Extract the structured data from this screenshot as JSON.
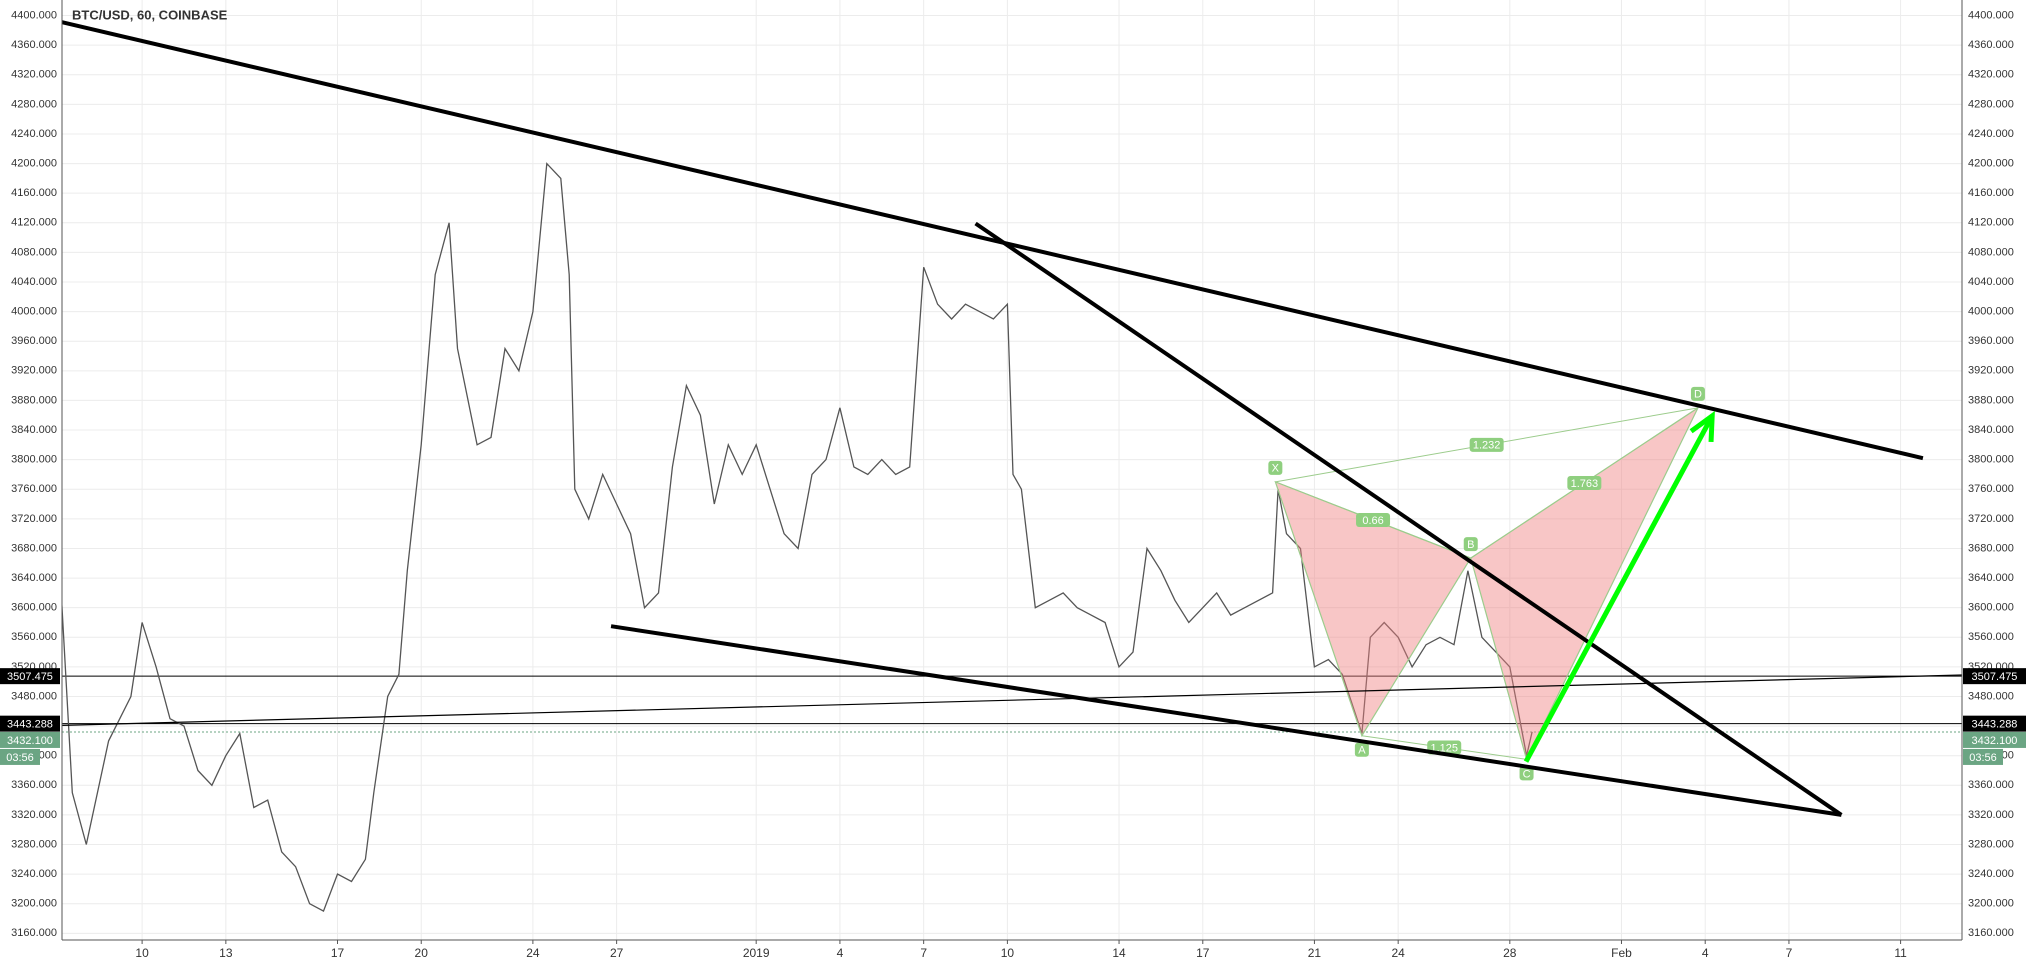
{
  "chart_data": {
    "type": "line",
    "title": "BTC/USD, 60, COINBASE",
    "color": "#555555",
    "x": [
      7.1,
      7.5,
      8,
      8.8,
      9.6,
      10,
      10.5,
      11,
      11.5,
      12,
      12.5,
      13,
      13.5,
      14,
      14.5,
      15,
      15.5,
      16,
      16.5,
      17,
      17.5,
      18,
      18.3,
      18.8,
      19.2,
      19.5,
      20,
      20.5,
      21,
      21.3,
      22,
      22.5,
      23,
      23.5,
      24,
      24.5,
      25,
      25.3,
      25.5,
      26,
      26.5,
      27,
      27.5,
      28,
      28.5,
      29,
      29.5,
      30,
      30.5,
      31,
      31.5,
      32,
      32.5,
      33,
      33.5,
      34,
      34.5,
      35,
      35.5,
      36,
      36.5,
      37,
      37.5,
      38,
      38.5,
      39,
      39.5,
      40,
      40.5,
      41,
      41.2,
      41.5,
      42,
      42.5,
      43,
      43.5,
      44,
      44.5,
      45,
      45.5,
      46,
      46.5,
      47,
      47.5,
      48,
      48.5,
      49,
      49.5,
      50.5,
      50.7,
      51,
      51.5,
      52,
      52.5,
      53,
      53.7,
      54,
      54.5,
      55,
      55.5,
      56,
      56.5,
      57,
      57.5,
      58,
      58.5,
      59,
      59.6,
      59.8
    ],
    "values": [
      3620,
      3350,
      3280,
      3420,
      3480,
      3580,
      3520,
      3450,
      3440,
      3380,
      3360,
      3400,
      3430,
      3330,
      3340,
      3270,
      3250,
      3200,
      3190,
      3240,
      3230,
      3260,
      3350,
      3480,
      3510,
      3650,
      3820,
      4050,
      4120,
      3950,
      3820,
      3830,
      3950,
      3920,
      4000,
      4200,
      4180,
      4050,
      3760,
      3720,
      3780,
      3740,
      3700,
      3600,
      3620,
      3790,
      3900,
      3860,
      3740,
      3820,
      3780,
      3820,
      3760,
      3700,
      3680,
      3780,
      3800,
      3870,
      3790,
      3780,
      3800,
      3780,
      3790,
      4060,
      4010,
      3990,
      4010,
      4000,
      3990,
      4010,
      3780,
      3760,
      3600,
      3610,
      3620,
      3600,
      3590,
      3580,
      3520,
      3540,
      3680,
      3650,
      3610,
      3580,
      3600,
      3620,
      3590,
      3600,
      3620,
      3760,
      3700,
      3680,
      3520,
      3530,
      3510,
      3430,
      3560,
      3580,
      3560,
      3520,
      3550,
      3560,
      3550,
      3650,
      3560,
      3540,
      3520,
      3400,
      3432.1
    ],
    "xlim": [
      7.13,
      75.2
    ],
    "xticks": [
      {
        "value": 10,
        "label": "10"
      },
      {
        "value": 13,
        "label": "13"
      },
      {
        "value": 17,
        "label": "17"
      },
      {
        "value": 20,
        "label": "20"
      },
      {
        "value": 24,
        "label": "24"
      },
      {
        "value": 27,
        "label": "27"
      },
      {
        "value": 32,
        "label": "2019"
      },
      {
        "value": 35,
        "label": "4"
      },
      {
        "value": 38,
        "label": "7"
      },
      {
        "value": 41,
        "label": "10"
      },
      {
        "value": 45,
        "label": "14"
      },
      {
        "value": 48,
        "label": "17"
      },
      {
        "value": 52,
        "label": "21"
      },
      {
        "value": 55,
        "label": "24"
      },
      {
        "value": 59,
        "label": "28"
      },
      {
        "value": 63,
        "label": "Feb"
      },
      {
        "value": 66,
        "label": "4"
      },
      {
        "value": 69,
        "label": "7"
      },
      {
        "value": 73,
        "label": "11"
      }
    ],
    "ylim": [
      3151,
      4421
    ],
    "yticks": [
      {
        "value": 3160,
        "label": "3160.000"
      },
      {
        "value": 3200,
        "label": "3200.000"
      },
      {
        "value": 3240,
        "label": "3240.000"
      },
      {
        "value": 3280,
        "label": "3280.000"
      },
      {
        "value": 3320,
        "label": "3320.000"
      },
      {
        "value": 3360,
        "label": "3360.000"
      },
      {
        "value": 3400,
        "label": "3400.000"
      },
      {
        "value": 3440,
        "label": "3440.000"
      },
      {
        "value": 3480,
        "label": "3480.000"
      },
      {
        "value": 3520,
        "label": "3520.000"
      },
      {
        "value": 3560,
        "label": "3560.000"
      },
      {
        "value": 3600,
        "label": "3600.000"
      },
      {
        "value": 3640,
        "label": "3640.000"
      },
      {
        "value": 3680,
        "label": "3680.000"
      },
      {
        "value": 3720,
        "label": "3720.000"
      },
      {
        "value": 3760,
        "label": "3760.000"
      },
      {
        "value": 3800,
        "label": "3800.000"
      },
      {
        "value": 3840,
        "label": "3840.000"
      },
      {
        "value": 3880,
        "label": "3880.000"
      },
      {
        "value": 3920,
        "label": "3920.000"
      },
      {
        "value": 3960,
        "label": "3960.000"
      },
      {
        "value": 4000,
        "label": "4000.000"
      },
      {
        "value": 4040,
        "label": "4040.000"
      },
      {
        "value": 4080,
        "label": "4080.000"
      },
      {
        "value": 4120,
        "label": "4120.000"
      },
      {
        "value": 4160,
        "label": "4160.000"
      },
      {
        "value": 4200,
        "label": "4200.000"
      },
      {
        "value": 4240,
        "label": "4240.000"
      },
      {
        "value": 4280,
        "label": "4280.000"
      },
      {
        "value": 4320,
        "label": "4320.000"
      },
      {
        "value": 4360,
        "label": "4360.000"
      },
      {
        "value": 4400,
        "label": "4400.000"
      }
    ],
    "grid": true,
    "price_lines": [
      {
        "value": 3507.475,
        "label": "3507.475",
        "color": "#000000"
      },
      {
        "value": 3443.288,
        "label": "3443.288",
        "color": "#000000"
      },
      {
        "value": 3432.1,
        "label": "3432.100",
        "color": "#6ba583"
      }
    ],
    "countdown": "03:56",
    "trendlines": [
      {
        "points": [
          [
            7.13,
            4391
          ],
          [
            73.8,
            3802
          ]
        ],
        "color": "#000000"
      },
      {
        "points": [
          [
            39.86,
            4119
          ],
          [
            70.88,
            3320
          ]
        ],
        "color": "#000000"
      },
      {
        "points": [
          [
            26.8,
            3575
          ],
          [
            70.88,
            3320
          ]
        ],
        "color": "#000000"
      },
      {
        "points": [
          [
            7.13,
            3441
          ],
          [
            75.2,
            3509
          ]
        ],
        "color": "#000000"
      }
    ],
    "pattern": {
      "color": "#f08080",
      "points": [
        {
          "label": "X",
          "x": 50.6,
          "y": 3770
        },
        {
          "label": "A",
          "x": 53.7,
          "y": 3427
        },
        {
          "label": "B",
          "x": 57.6,
          "y": 3667
        },
        {
          "label": "C",
          "x": 59.6,
          "y": 3395
        },
        {
          "label": "D",
          "x": 65.74,
          "y": 3870
        }
      ],
      "ratios": [
        {
          "value": 0.66,
          "legs": [
            "X",
            "B"
          ]
        },
        {
          "value": 1.232,
          "legs": [
            "X",
            "D"
          ]
        },
        {
          "value": 1.763,
          "legs": [
            "B",
            "D"
          ]
        },
        {
          "value": 1.125,
          "legs": [
            "A",
            "C"
          ]
        }
      ]
    },
    "arrow": {
      "points": [
        [
          59.58,
          3392
        ],
        [
          66.25,
          3859
        ]
      ],
      "color": "#00ff00"
    }
  }
}
